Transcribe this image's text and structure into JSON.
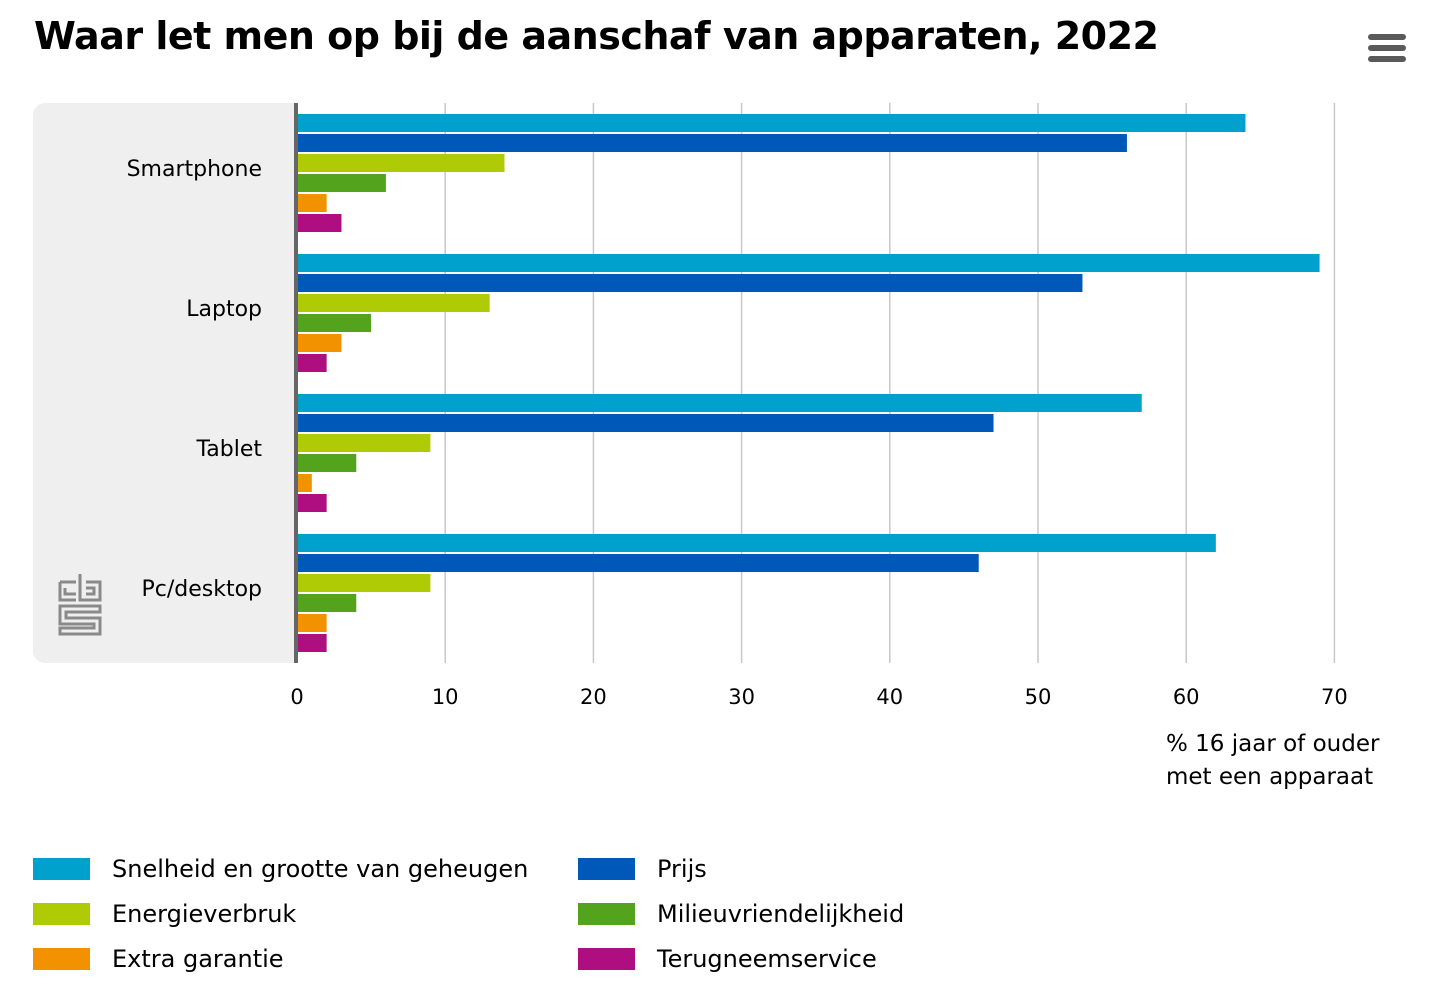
{
  "header": {
    "title": "Waar let men op bij de aanschaf van apparaten, 2022",
    "menu_icon": "hamburger-menu-icon"
  },
  "logo": {
    "name": "cbs-logo"
  },
  "chart_data": {
    "type": "bar",
    "orientation": "horizontal",
    "title": "Waar let men op bij de aanschaf van apparaten, 2022",
    "categories": [
      "Smartphone",
      "Laptop",
      "Tablet",
      "Pc/desktop"
    ],
    "series": [
      {
        "name": "Snelheid en grootte van geheugen",
        "color": "#00a1cd",
        "values": [
          64,
          69,
          57,
          62
        ]
      },
      {
        "name": "Prijs",
        "color": "#0058b8",
        "values": [
          56,
          53,
          47,
          46
        ]
      },
      {
        "name": "Energieverbruk",
        "color": "#afcb05",
        "values": [
          14,
          13,
          9,
          9
        ]
      },
      {
        "name": "Milieuvriendelijkheid",
        "color": "#53a31d",
        "values": [
          6,
          5,
          4,
          4
        ]
      },
      {
        "name": "Extra garantie",
        "color": "#f39200",
        "values": [
          2,
          3,
          1,
          2
        ]
      },
      {
        "name": "Terugneemservice",
        "color": "#af0e80",
        "values": [
          3,
          2,
          2,
          2
        ]
      }
    ],
    "xlim": [
      0,
      70
    ],
    "xticks": [
      "0",
      "10",
      "20",
      "30",
      "40",
      "50",
      "60",
      "70"
    ],
    "xlabel": [
      "% 16 jaar of ouder",
      "met een apparaat"
    ],
    "ylabel": "",
    "grid": true,
    "legend_position": "bottom"
  }
}
